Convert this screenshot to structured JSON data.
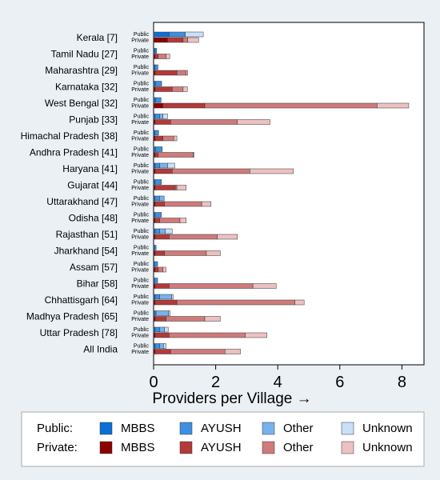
{
  "chart_data": {
    "type": "bar",
    "orientation": "horizontal",
    "stacked": true,
    "xlabel": "Providers per Village →",
    "xlim": [
      0,
      8.7
    ],
    "xticks": [
      0,
      2,
      4,
      6,
      8
    ],
    "row_sublabels": [
      "Public",
      "Private"
    ],
    "categories": [
      "Kerala [7]",
      "Tamil Nadu [27]",
      "Maharashtra [29]",
      "Karnataka [32]",
      "West Bengal [32]",
      "Punjab [33]",
      "Himachal Pradesh [38]",
      "Andhra Pradesh [41]",
      "Haryana [41]",
      "Gujarat [44]",
      "Uttarakhand [47]",
      "Odisha [48]",
      "Rajasthan [51]",
      "Jharkhand [54]",
      "Assam [57]",
      "Bihar [58]",
      "Chhattisgarh [64]",
      "Madhya Pradesh [65]",
      "Uttar Pradesh [78]",
      "All India"
    ],
    "segments": [
      "MBBS",
      "AYUSH",
      "Other",
      "Unknown"
    ],
    "public": [
      [
        0.5,
        0.52,
        0.0,
        0.58
      ],
      [
        0.05,
        0.05,
        0.0,
        0.0
      ],
      [
        0.04,
        0.1,
        0.0,
        0.0
      ],
      [
        0.06,
        0.2,
        0.0,
        0.0
      ],
      [
        0.06,
        0.18,
        0.0,
        0.0
      ],
      [
        0.05,
        0.15,
        0.1,
        0.15
      ],
      [
        0.04,
        0.12,
        0.0,
        0.0
      ],
      [
        0.06,
        0.22,
        0.0,
        0.0
      ],
      [
        0.05,
        0.15,
        0.25,
        0.23
      ],
      [
        0.05,
        0.2,
        0.0,
        0.0
      ],
      [
        0.04,
        0.15,
        0.15,
        0.0
      ],
      [
        0.05,
        0.2,
        0.0,
        0.0
      ],
      [
        0.05,
        0.15,
        0.18,
        0.22
      ],
      [
        0.03,
        0.05,
        0.0,
        0.0
      ],
      [
        0.03,
        0.1,
        0.0,
        0.0
      ],
      [
        0.03,
        0.1,
        0.0,
        0.0
      ],
      [
        0.05,
        0.15,
        0.38,
        0.05
      ],
      [
        0.03,
        0.05,
        0.4,
        0.05
      ],
      [
        0.05,
        0.15,
        0.15,
        0.12
      ],
      [
        0.05,
        0.15,
        0.12,
        0.08
      ]
    ],
    "private": [
      [
        0.45,
        0.5,
        0.15,
        0.35
      ],
      [
        0.05,
        0.1,
        0.25,
        0.12
      ],
      [
        0.05,
        0.7,
        0.3,
        0.05
      ],
      [
        0.05,
        0.55,
        0.35,
        0.14
      ],
      [
        0.3,
        1.35,
        5.55,
        1.02
      ],
      [
        0.05,
        0.5,
        2.15,
        1.05
      ],
      [
        0.05,
        0.25,
        0.35,
        0.1
      ],
      [
        0.05,
        0.1,
        1.13,
        0.02
      ],
      [
        0.05,
        0.55,
        2.5,
        1.4
      ],
      [
        0.05,
        0.65,
        0.05,
        0.3
      ],
      [
        0.05,
        0.3,
        1.2,
        0.3
      ],
      [
        0.05,
        0.15,
        0.65,
        0.2
      ],
      [
        0.05,
        0.45,
        1.55,
        0.65
      ],
      [
        0.05,
        0.3,
        1.35,
        0.45
      ],
      [
        0.05,
        0.1,
        0.15,
        0.1
      ],
      [
        0.05,
        0.45,
        2.7,
        0.75
      ],
      [
        0.05,
        0.7,
        3.8,
        0.3
      ],
      [
        0.05,
        0.35,
        1.25,
        0.5
      ],
      [
        0.05,
        0.45,
        2.45,
        0.7
      ],
      [
        0.05,
        0.5,
        1.75,
        0.5
      ]
    ],
    "public_colors": [
      "#0b6fd6",
      "#3d8fe3",
      "#78b2ee",
      "#c8e0f8"
    ],
    "private_colors": [
      "#8b0000",
      "#b23a3a",
      "#cf7b7b",
      "#ecc1c1"
    ],
    "grid": false
  },
  "legend": {
    "public_label": "Public:",
    "private_label": "Private:",
    "public_items": [
      "MBBS",
      "AYUSH",
      "Other",
      "Unknown"
    ],
    "private_items": [
      "MBBS",
      "AYUSH",
      "Other",
      "Unknown"
    ]
  }
}
